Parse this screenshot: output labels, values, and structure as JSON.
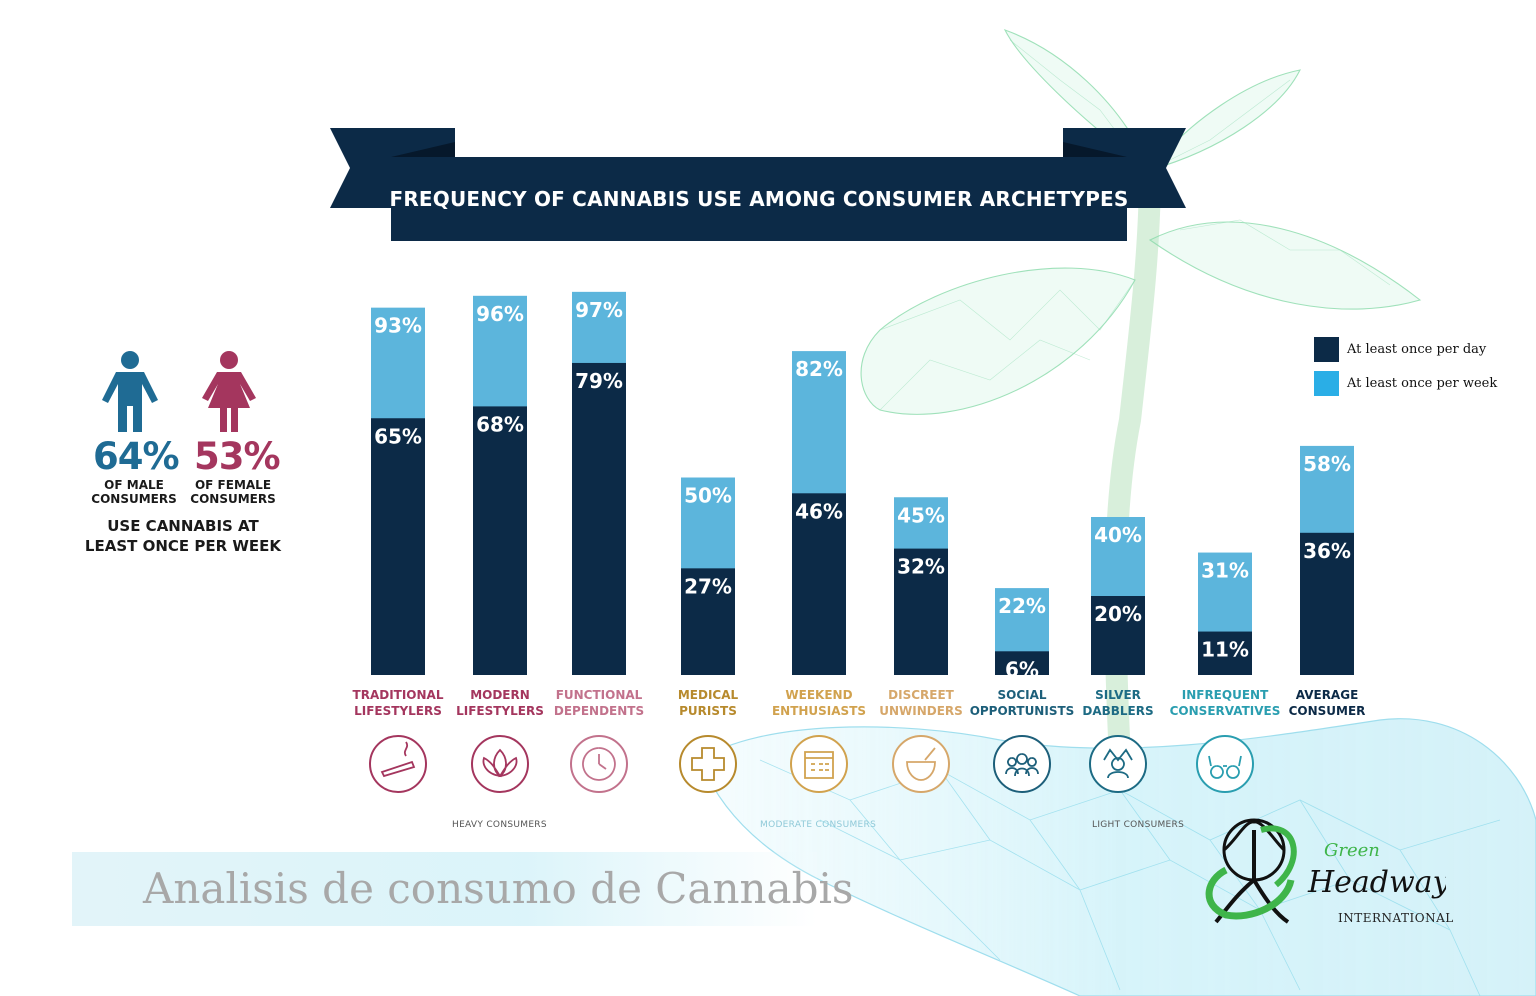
{
  "colors": {
    "daily": "#0c2a47",
    "weekly": "#5cb5dc",
    "banner": "#0c2a47",
    "male": "#1f6b94",
    "female": "#a4365e"
  },
  "gender_stats": {
    "male": {
      "pct": "64%",
      "label_line1": "OF MALE",
      "label_line2": "CONSUMERS",
      "icon": "male-person-icon"
    },
    "female": {
      "pct": "53%",
      "label_line1": "OF FEMALE",
      "label_line2": "CONSUMERS",
      "icon": "female-person-icon"
    },
    "note_line1": "USE CANNABIS AT",
    "note_line2": "LEAST ONCE PER WEEK"
  },
  "groups": {
    "heavy": "HEAVY CONSUMERS",
    "moderate": "MODERATE CONSUMERS",
    "light": "LIGHT CONSUMERS"
  },
  "footer": {
    "text": "Analisis de consumo de Cannabis",
    "logo_script1": "Green",
    "logo_script2": "Headway",
    "logo_sub": "INTERNATIONAL"
  },
  "chart_data": {
    "type": "bar",
    "title": "FREQUENCY OF CANNABIS USE AMONG CONSUMER ARCHETYPES",
    "categories": [
      {
        "line1": "TRADITIONAL",
        "line2": "LIFESTYLERS",
        "color": "#a4365e",
        "icon": "joint-smoke-icon"
      },
      {
        "line1": "MODERN",
        "line2": "LIFESTYLERS",
        "color": "#a4365e",
        "icon": "lotus-icon"
      },
      {
        "line1": "FUNCTIONAL",
        "line2": "DEPENDENTS",
        "color": "#c2728c",
        "icon": "clock-icon"
      },
      {
        "line1": "MEDICAL",
        "line2": "PURISTS",
        "color": "#b78a2d",
        "icon": "medical-cross-icon"
      },
      {
        "line1": "WEEKEND",
        "line2": "ENTHUSIASTS",
        "color": "#d1a24e",
        "icon": "calendar-icon"
      },
      {
        "line1": "DISCREET",
        "line2": "UNWINDERS",
        "color": "#d6a76a",
        "icon": "mortar-pestle-icon"
      },
      {
        "line1": "SOCIAL",
        "line2": "OPPORTUNISTS",
        "color": "#1d5f7a",
        "icon": "group-people-icon"
      },
      {
        "line1": "SILVER",
        "line2": "DABBLERS",
        "color": "#1d6b84",
        "icon": "relaxed-person-icon"
      },
      {
        "line1": "INFREQUENT",
        "line2": "CONSERVATIVES",
        "color": "#2a9eb0",
        "icon": "glasses-icon"
      },
      {
        "line1": "AVERAGE",
        "line2": "CONSUMER",
        "color": "#0c2a47",
        "icon": ""
      }
    ],
    "series": [
      {
        "name": "At  least once per day",
        "values": [
          65,
          68,
          79,
          27,
          46,
          32,
          6,
          20,
          11,
          36
        ]
      },
      {
        "name": "At  least once per week",
        "values": [
          93,
          96,
          97,
          50,
          82,
          45,
          22,
          40,
          31,
          58
        ]
      }
    ],
    "value_labels": {
      "daily": [
        "65%",
        "68%",
        "79%",
        "27%",
        "46%",
        "32%",
        "6%",
        "20%",
        "11%",
        "36%"
      ],
      "weekly": [
        "93%",
        "96%",
        "97%",
        "50%",
        "82%",
        "45%",
        "22%",
        "40%",
        "31%",
        "58%"
      ]
    },
    "ylim": [
      0,
      100
    ],
    "legend": "top-right",
    "grid": false
  }
}
